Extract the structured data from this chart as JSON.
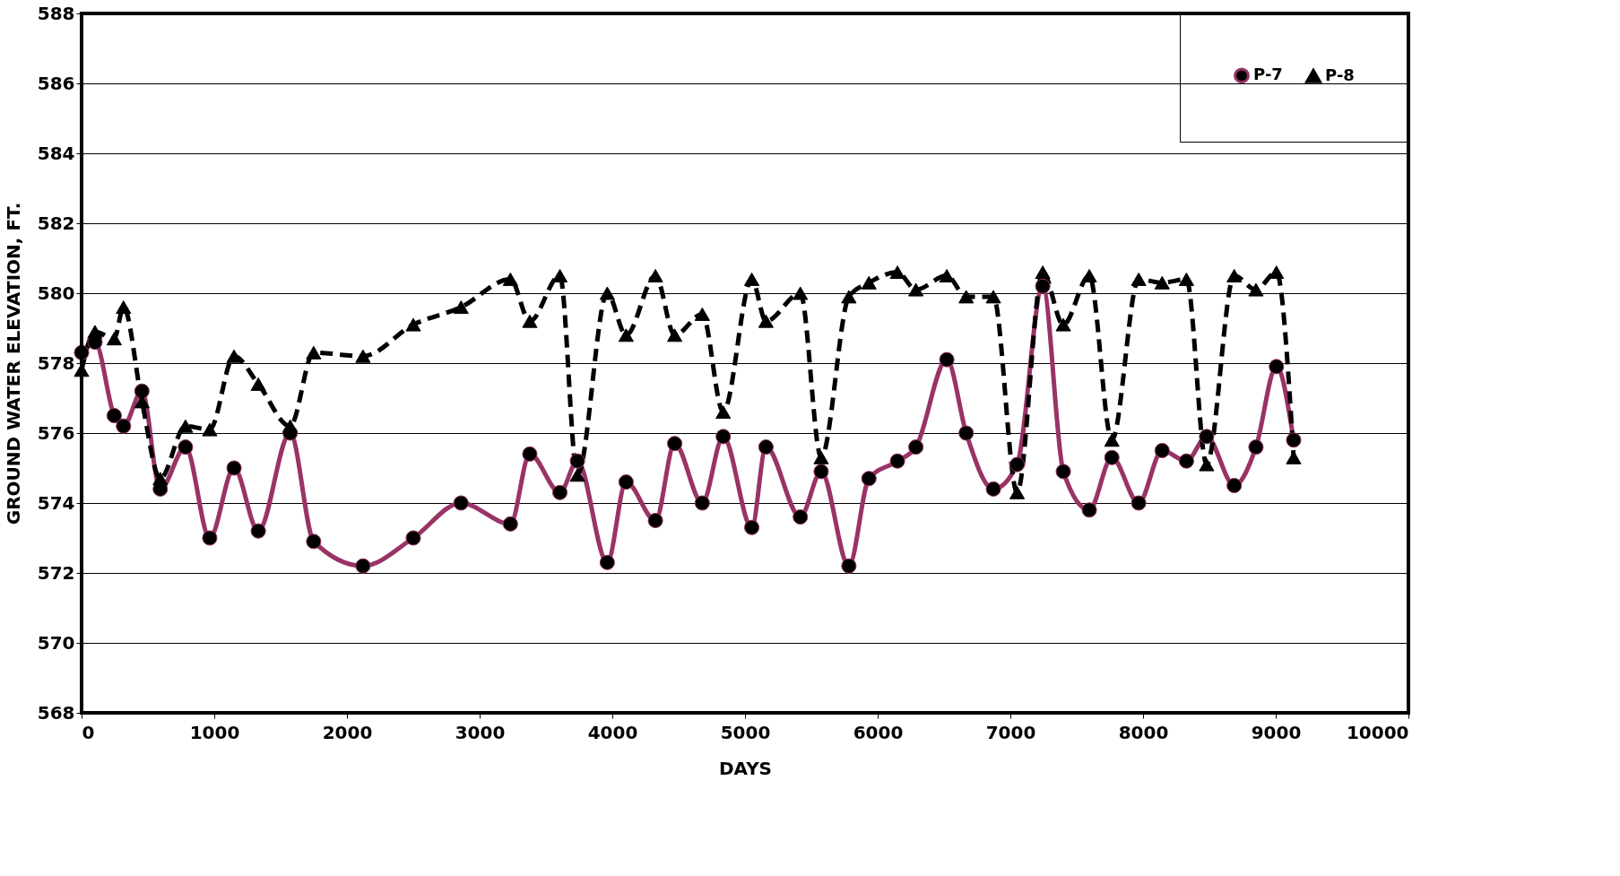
{
  "chart_data": {
    "type": "line",
    "xlabel": "DAYS",
    "ylabel": "GROUND WATER ELEVATION, FT.",
    "x": [
      0,
      101,
      246,
      316,
      455,
      593,
      783,
      966,
      1149,
      1332,
      1572,
      1749,
      2121,
      2500,
      2860,
      3232,
      3378,
      3605,
      3737,
      3962,
      4104,
      4325,
      4470,
      4678,
      4836,
      5051,
      5158,
      5417,
      5574,
      5783,
      5934,
      6149,
      6288,
      6521,
      6667,
      6872,
      7051,
      7244,
      7399,
      7595,
      7765,
      7967,
      8144,
      8327,
      8479,
      8687,
      8851,
      9005,
      9135
    ],
    "series": [
      {
        "name": "P-7",
        "color": "#993366",
        "marker": "circle",
        "line_style": "solid",
        "values": [
          578.3,
          578.6,
          576.5,
          576.2,
          577.2,
          574.4,
          575.6,
          573.0,
          575.0,
          573.2,
          576.0,
          572.9,
          572.2,
          573.0,
          574.0,
          573.4,
          575.4,
          574.3,
          575.2,
          572.3,
          574.6,
          573.5,
          575.7,
          574.0,
          575.9,
          573.3,
          575.6,
          573.6,
          574.9,
          572.2,
          574.7,
          575.2,
          575.6,
          578.1,
          576.0,
          574.4,
          575.1,
          580.2,
          574.9,
          573.8,
          575.3,
          574.0,
          575.5,
          575.2,
          575.9,
          574.5,
          575.6,
          577.9,
          575.8
        ]
      },
      {
        "name": "P-8",
        "color": "#000000",
        "marker": "triangle",
        "line_style": "dashed",
        "values": [
          577.8,
          578.9,
          578.7,
          579.6,
          576.9,
          574.7,
          576.2,
          576.1,
          578.2,
          577.4,
          576.2,
          578.3,
          578.2,
          579.1,
          579.6,
          580.4,
          579.2,
          580.5,
          574.8,
          580.0,
          578.8,
          580.5,
          578.8,
          579.4,
          576.6,
          580.4,
          579.2,
          580.0,
          575.3,
          579.9,
          580.3,
          580.6,
          580.1,
          580.5,
          579.9,
          579.9,
          574.3,
          580.6,
          579.1,
          580.5,
          575.8,
          580.4,
          580.3,
          580.4,
          575.1,
          580.5,
          580.1,
          580.6,
          575.3
        ]
      }
    ],
    "xlim": [
      0,
      10000
    ],
    "xticks": [
      0,
      {
        "value": 1000,
        "label": "1000"
      },
      {
        "value": 2000,
        "label": "2000"
      },
      {
        "value": 3000,
        "label": "3000"
      },
      {
        "value": 4000,
        "label": "4000"
      },
      {
        "value": 5000,
        "label": "5000"
      },
      {
        "value": 6000,
        "label": "6000"
      },
      {
        "value": 7000,
        "label": "7000"
      },
      {
        "value": 8000,
        "label": "8000"
      },
      {
        "value": 9000,
        "label": "9000"
      },
      {
        "value": 10000,
        "label": "10000"
      }
    ],
    "ylim": [
      568,
      588
    ],
    "yticks": [
      568,
      570,
      572,
      574,
      576,
      578,
      580,
      582,
      584,
      586,
      588
    ],
    "grid": "y",
    "legend": "top right"
  }
}
